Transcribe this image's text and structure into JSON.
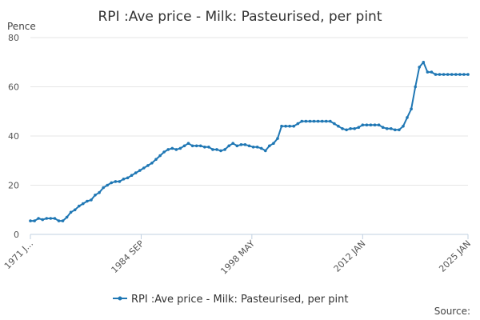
{
  "chart_data": {
    "type": "line",
    "title": "RPI :Ave price - Milk: Pasteurised, per pint",
    "ylabel": "Pence",
    "xlabel": "",
    "ylim": [
      0,
      80
    ],
    "yticks": [
      0,
      20,
      40,
      60,
      80
    ],
    "xlim": [
      1971.0,
      2025.0
    ],
    "xticks": [
      {
        "value": 1971.0,
        "label": "1971 J..."
      },
      {
        "value": 1984.67,
        "label": "1984 SEP"
      },
      {
        "value": 1998.33,
        "label": "1998 MAY"
      },
      {
        "value": 2012.0,
        "label": "2012 JAN"
      },
      {
        "value": 2025.0,
        "label": "2025 JAN"
      }
    ],
    "grid": true,
    "legend_position": "bottom-center",
    "series": [
      {
        "name": "RPI :Ave price - Milk: Pasteurised, per pint",
        "color": "#1f77b4",
        "x": [
          1971.0,
          1971.5,
          1972.0,
          1972.5,
          1973.0,
          1973.5,
          1974.0,
          1974.5,
          1975.0,
          1975.5,
          1976.0,
          1976.5,
          1977.0,
          1977.5,
          1978.0,
          1978.5,
          1979.0,
          1979.5,
          1980.0,
          1980.5,
          1981.0,
          1981.5,
          1982.0,
          1982.5,
          1983.0,
          1983.5,
          1984.0,
          1984.5,
          1985.0,
          1985.5,
          1986.0,
          1986.5,
          1987.0,
          1987.5,
          1988.0,
          1988.5,
          1989.0,
          1989.5,
          1990.0,
          1990.5,
          1991.0,
          1991.5,
          1992.0,
          1992.5,
          1993.0,
          1993.5,
          1994.0,
          1994.5,
          1995.0,
          1995.5,
          1996.0,
          1996.5,
          1997.0,
          1997.5,
          1998.0,
          1998.5,
          1999.0,
          1999.5,
          2000.0,
          2000.5,
          2001.0,
          2001.5,
          2002.0,
          2002.5,
          2003.0,
          2003.5,
          2004.0,
          2004.5,
          2005.0,
          2005.5,
          2006.0,
          2006.5,
          2007.0,
          2007.5,
          2008.0,
          2008.5,
          2009.0,
          2009.5,
          2010.0,
          2010.5,
          2011.0,
          2011.5,
          2012.0,
          2012.5,
          2013.0,
          2013.5,
          2014.0,
          2014.5,
          2015.0,
          2015.5,
          2016.0,
          2016.5,
          2017.0,
          2017.5,
          2018.0,
          2018.5,
          2019.0,
          2019.5,
          2020.0,
          2020.5,
          2021.0,
          2021.5,
          2022.0,
          2022.5,
          2023.0,
          2023.5,
          2024.0,
          2024.5,
          2025.0
        ],
        "y": [
          5.5,
          5.5,
          6.5,
          6.0,
          6.5,
          6.5,
          6.5,
          5.5,
          5.5,
          7.0,
          9.0,
          10.0,
          11.5,
          12.5,
          13.5,
          14.0,
          16.0,
          17.0,
          19.0,
          20.0,
          21.0,
          21.5,
          21.5,
          22.5,
          23.0,
          24.0,
          25.0,
          26.0,
          27.0,
          28.0,
          29.0,
          30.5,
          32.0,
          33.5,
          34.5,
          35.0,
          34.5,
          35.0,
          36.0,
          37.0,
          36.0,
          36.0,
          36.0,
          35.5,
          35.5,
          34.5,
          34.5,
          34.0,
          34.5,
          36.0,
          37.0,
          36.0,
          36.5,
          36.5,
          36.0,
          35.5,
          35.5,
          35.0,
          34.0,
          36.0,
          37.0,
          39.0,
          44.0,
          44.0,
          44.0,
          44.0,
          45.0,
          46.0,
          46.0,
          46.0,
          46.0,
          46.0,
          46.0,
          46.0,
          46.0,
          45.0,
          44.0,
          43.0,
          42.5,
          43.0,
          43.0,
          43.5,
          44.5,
          44.5,
          44.5,
          44.5,
          44.5,
          43.5,
          43.0,
          43.0,
          42.5,
          42.5,
          44.0,
          47.5,
          51.0,
          60.0,
          68.0,
          70.0,
          66.0,
          66.0,
          65.0,
          65.0,
          65.0,
          65.0,
          65.0,
          65.0,
          65.0,
          65.0,
          65.0
        ]
      }
    ]
  },
  "footer": {
    "source_label": "Source:"
  }
}
